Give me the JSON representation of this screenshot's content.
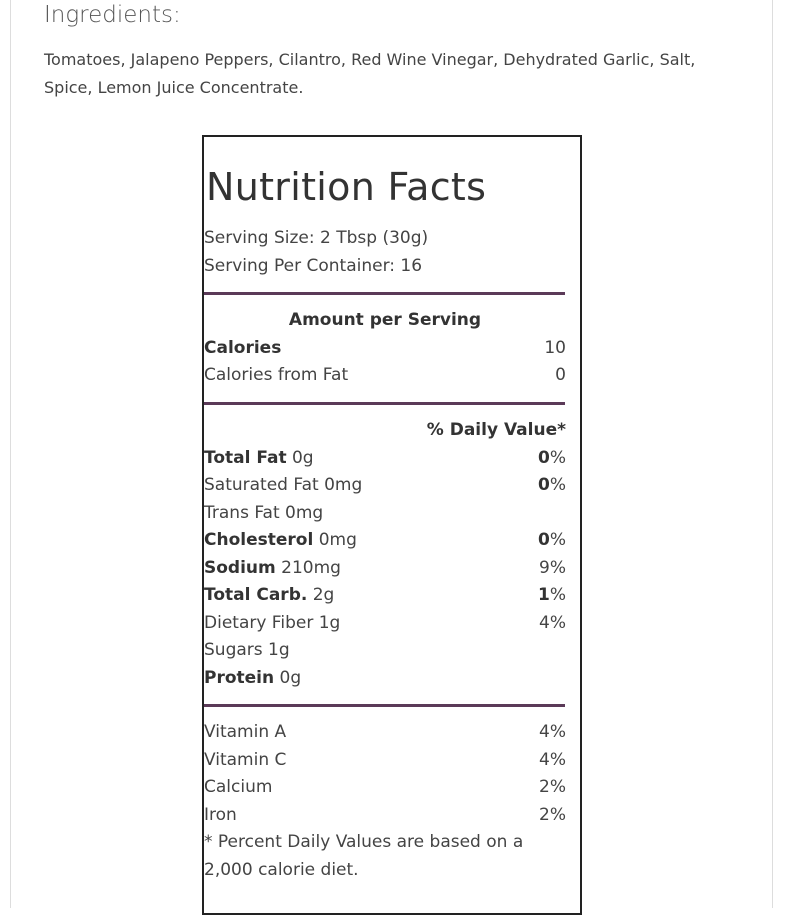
{
  "ingredients": {
    "title": "Ingredients:",
    "text": "Tomatoes, Jalapeno Peppers, Cilantro, Red Wine Vinegar, Dehydrated Garlic, Salt, Spice, Lemon Juice Concentrate."
  },
  "label": {
    "title": "Nutrition Facts",
    "serving_size": "Serving Size: 2 Tbsp (30g)",
    "servings": "Serving Per Container: 16",
    "amount_header": "Amount per Serving",
    "calories": {
      "label": "Calories",
      "value": "10"
    },
    "calories_fat": {
      "label": "Calories from Fat",
      "value": "0"
    },
    "dv_header": "% Daily Value*",
    "nutrients": [
      {
        "name": "Total Fat",
        "amount": "0g",
        "pct": "0",
        "bold": true
      },
      {
        "name": "Saturated Fat",
        "amount": "0mg",
        "pct": "0",
        "bold": false,
        "pctBold": true
      },
      {
        "name": "Trans Fat",
        "amount": "0mg",
        "pct": "",
        "bold": false
      },
      {
        "name": "Cholesterol",
        "amount": "0mg",
        "pct": "0",
        "bold": true
      },
      {
        "name": "Sodium",
        "amount": "210mg",
        "pct": "9",
        "bold": true,
        "pctBold": false
      },
      {
        "name": "Total Carb.",
        "amount": "2g",
        "pct": "1",
        "bold": true
      },
      {
        "name": "Dietary Fiber",
        "amount": "1g",
        "pct": "4",
        "bold": false
      },
      {
        "name": "Sugars",
        "amount": "1g",
        "pct": "",
        "bold": false
      },
      {
        "name": "Protein",
        "amount": "0g",
        "pct": "",
        "bold": true
      }
    ],
    "vitamins": [
      {
        "name": "Vitamin A",
        "pct": "4%"
      },
      {
        "name": "Vitamin C",
        "pct": "4%"
      },
      {
        "name": "Calcium",
        "pct": "2%"
      },
      {
        "name": "Iron",
        "pct": "2%"
      }
    ],
    "footnote_1": "* Percent Daily Values are based on a",
    "footnote_2": "2,000 calorie diet."
  }
}
